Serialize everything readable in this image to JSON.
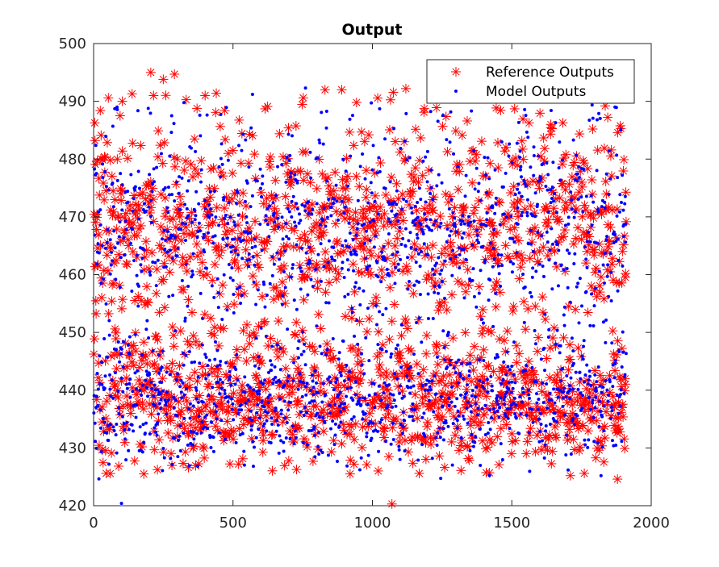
{
  "chart_data": {
    "type": "scatter",
    "title": "Output",
    "xlabel": "",
    "ylabel": "",
    "xlim": [
      0,
      2000
    ],
    "ylim": [
      420,
      500
    ],
    "x_ticks": [
      0,
      500,
      1000,
      1500,
      2000
    ],
    "y_ticks": [
      420,
      430,
      440,
      450,
      460,
      470,
      480,
      490,
      500
    ],
    "x_tick_labels": [
      "0",
      "500",
      "1000",
      "1500",
      "2000"
    ],
    "y_tick_labels": [
      "420",
      "430",
      "440",
      "450",
      "460",
      "470",
      "480",
      "490",
      "500"
    ],
    "grid": false,
    "legend_position": "top-right",
    "series": [
      {
        "name": "Reference Outputs",
        "marker": "asterisk",
        "color": "#ff0000",
        "count": 1910,
        "x_range": [
          1,
          1910
        ],
        "y_range": [
          420.3,
          495.0
        ],
        "y_mean": 452.9,
        "y_std": 16.4,
        "sample_points": [
          [
            5,
            483.2
          ],
          [
            12,
            469.9
          ],
          [
            18,
            444.7
          ],
          [
            30,
            434.5
          ],
          [
            45,
            425.6
          ],
          [
            60,
            479.8
          ],
          [
            80,
            448.9
          ],
          [
            95,
            487.5
          ],
          [
            103,
            490.0
          ],
          [
            130,
            446.0
          ],
          [
            160,
            437.5
          ],
          [
            180,
            425.5
          ],
          [
            205,
            495.0
          ],
          [
            215,
            491.0
          ],
          [
            250,
            493.8
          ],
          [
            290,
            494.7
          ],
          [
            300,
            480.0
          ],
          [
            340,
            426.6
          ],
          [
            400,
            491.0
          ],
          [
            440,
            491.4
          ],
          [
            470,
            488.4
          ],
          [
            520,
            427.2
          ],
          [
            560,
            484.3
          ],
          [
            615,
            488.7
          ],
          [
            700,
            427.8
          ],
          [
            752,
            490.6
          ],
          [
            830,
            492.0
          ],
          [
            890,
            492.0
          ],
          [
            920,
            425.5
          ],
          [
            1070,
            420.3
          ],
          [
            1120,
            492.2
          ],
          [
            1230,
            488.9
          ],
          [
            1340,
            486.6
          ],
          [
            1420,
            425.7
          ],
          [
            1510,
            488.7
          ],
          [
            1640,
            486.0
          ],
          [
            1710,
            425.2
          ],
          [
            1760,
            425.6
          ],
          [
            1790,
            485.2
          ],
          [
            1880,
            484.6
          ],
          [
            1905,
            429.9
          ],
          [
            1908,
            460.2
          ]
        ]
      },
      {
        "name": "Model Outputs",
        "marker": "dot",
        "color": "#0000ff",
        "count": 1910,
        "x_range": [
          1,
          1910
        ],
        "y_range": [
          420.4,
          492.3
        ],
        "y_mean": 452.9,
        "y_std": 16.2,
        "sample_points": [
          [
            10,
            477.5
          ],
          [
            25,
            468.6
          ],
          [
            40,
            440.3
          ],
          [
            60,
            460.1
          ],
          [
            100,
            420.4
          ],
          [
            150,
            475.2
          ],
          [
            200,
            442.7
          ],
          [
            260,
            437.9
          ],
          [
            330,
            468.8
          ],
          [
            400,
            446.2
          ],
          [
            455,
            445.0
          ],
          [
            500,
            459.0
          ],
          [
            570,
            491.2
          ],
          [
            640,
            447.6
          ],
          [
            700,
            466.2
          ],
          [
            760,
            492.3
          ],
          [
            800,
            451.1
          ],
          [
            900,
            441.6
          ],
          [
            980,
            461.3
          ],
          [
            1020,
            447.9
          ],
          [
            1100,
            462.6
          ],
          [
            1200,
            440.0
          ],
          [
            1280,
            462.7
          ],
          [
            1350,
            444.6
          ],
          [
            1430,
            471.9
          ],
          [
            1500,
            441.4
          ],
          [
            1575,
            470.2
          ],
          [
            1650,
            440.2
          ],
          [
            1720,
            446.8
          ],
          [
            1800,
            439.9
          ],
          [
            1870,
            489.0
          ],
          [
            1900,
            468.4
          ]
        ]
      }
    ]
  }
}
